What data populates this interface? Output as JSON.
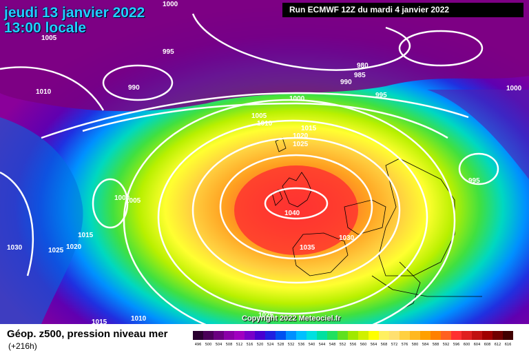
{
  "header": {
    "date": "jeudi 13 janvier 2022",
    "time": "13:00 locale",
    "run": "Run ECMWF 12Z du mardi 4 janvier 2022"
  },
  "copyright": "Copyright 2022 Meteociel.fr",
  "footer": {
    "title": "Géop. z500, pression niveau mer",
    "subtitle": "(+216h)"
  },
  "isobar_labels": [
    "1000",
    "1005",
    "995",
    "990",
    "980",
    "985",
    "990",
    "995",
    "1000",
    "1000",
    "1010",
    "1005",
    "1010",
    "1015",
    "1020",
    "1025",
    "1000",
    "1005",
    "1015",
    "1020",
    "1030",
    "1025",
    "1040",
    "1030",
    "1035",
    "995",
    "1025",
    "1010",
    "1015"
  ],
  "legend": {
    "values": [
      "496",
      "500",
      "504",
      "508",
      "512",
      "516",
      "520",
      "524",
      "528",
      "532",
      "536",
      "540",
      "544",
      "548",
      "552",
      "556",
      "560",
      "564",
      "568",
      "572",
      "576",
      "580",
      "584",
      "588",
      "592",
      "596",
      "600",
      "604",
      "608",
      "612",
      "616"
    ],
    "colors": [
      "#2a0030",
      "#4a0058",
      "#6a0080",
      "#8a00a8",
      "#a000c0",
      "#7800c8",
      "#4800d0",
      "#2020e0",
      "#0050f0",
      "#0090ff",
      "#00c0ff",
      "#00e0e0",
      "#00e0a0",
      "#20e060",
      "#60e020",
      "#a0e800",
      "#d0f000",
      "#ffff00",
      "#fff060",
      "#ffe070",
      "#ffd040",
      "#ffb820",
      "#ffa000",
      "#ff8000",
      "#ff6020",
      "#ff3030",
      "#e02020",
      "#c01010",
      "#a00000",
      "#700000",
      "#400000"
    ]
  }
}
